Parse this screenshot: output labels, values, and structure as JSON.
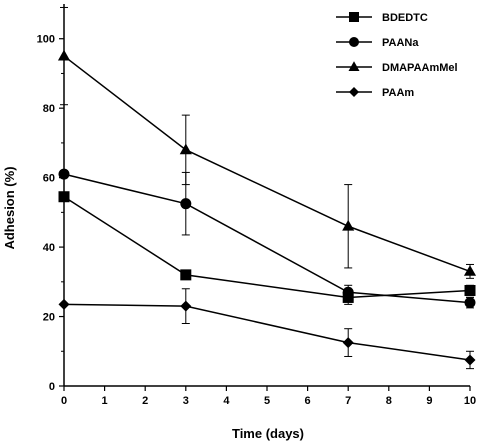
{
  "chart_data": {
    "type": "line",
    "xlabel": "Time (days)",
    "ylabel": "Adhesion (%)",
    "xlim": [
      0,
      10
    ],
    "ylim": [
      0,
      110
    ],
    "xticks": [
      0,
      1,
      2,
      3,
      4,
      5,
      6,
      7,
      8,
      9,
      10
    ],
    "yticks": [
      0,
      20,
      40,
      60,
      80,
      100
    ],
    "grid": false,
    "legend_position": "top-right",
    "series": [
      {
        "name": "BDEDTC",
        "marker": "square",
        "x": [
          0,
          3,
          7,
          10
        ],
        "y": [
          54.5,
          32,
          25.5,
          27.5
        ],
        "err": [
          0,
          0,
          2,
          1.5
        ]
      },
      {
        "name": "PAANa",
        "marker": "circle",
        "x": [
          0,
          3,
          7,
          10
        ],
        "y": [
          61,
          52.5,
          27,
          24
        ],
        "err": [
          1,
          9,
          2,
          1.5
        ]
      },
      {
        "name": "DMAPAAmMel",
        "marker": "triangle",
        "x": [
          0,
          3,
          7,
          10
        ],
        "y": [
          95,
          68,
          46,
          33
        ],
        "err": [
          14,
          10,
          12,
          2
        ]
      },
      {
        "name": "PAAm",
        "marker": "diamond",
        "x": [
          0,
          3,
          7,
          10
        ],
        "y": [
          23.5,
          23,
          12.5,
          7.5
        ],
        "err": [
          0,
          5,
          4,
          2.5
        ]
      }
    ]
  }
}
